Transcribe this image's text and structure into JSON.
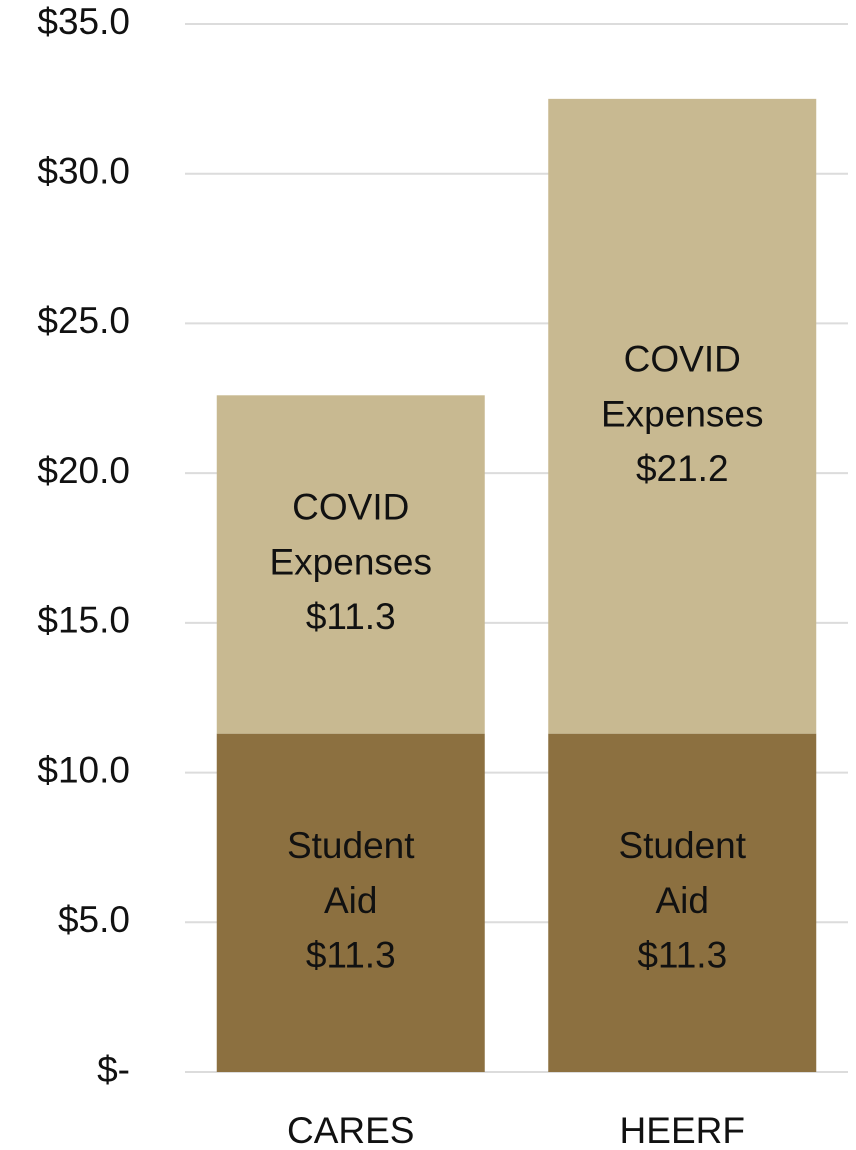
{
  "chart_data": {
    "type": "stacked_bar",
    "categories": [
      "CARES",
      "HEERF"
    ],
    "series": [
      {
        "name": "Student Aid",
        "color": "#8c7040",
        "values": [
          11.3,
          11.3
        ],
        "value_labels": [
          "$11.3",
          "$11.3"
        ]
      },
      {
        "name": "COVID Expenses",
        "color": "#c8b991",
        "values": [
          11.3,
          21.2
        ],
        "value_labels": [
          "$11.3",
          "$21.2"
        ]
      }
    ],
    "ylim": [
      0,
      35
    ],
    "yticks": [
      {
        "value": 0,
        "label": "$-"
      },
      {
        "value": 5,
        "label": "$5.0"
      },
      {
        "value": 10,
        "label": "$10.0"
      },
      {
        "value": 15,
        "label": "$15.0"
      },
      {
        "value": 20,
        "label": "$20.0"
      },
      {
        "value": 25,
        "label": "$25.0"
      },
      {
        "value": 30,
        "label": "$30.0"
      },
      {
        "value": 35,
        "label": "$35.0"
      }
    ],
    "grid": true
  }
}
